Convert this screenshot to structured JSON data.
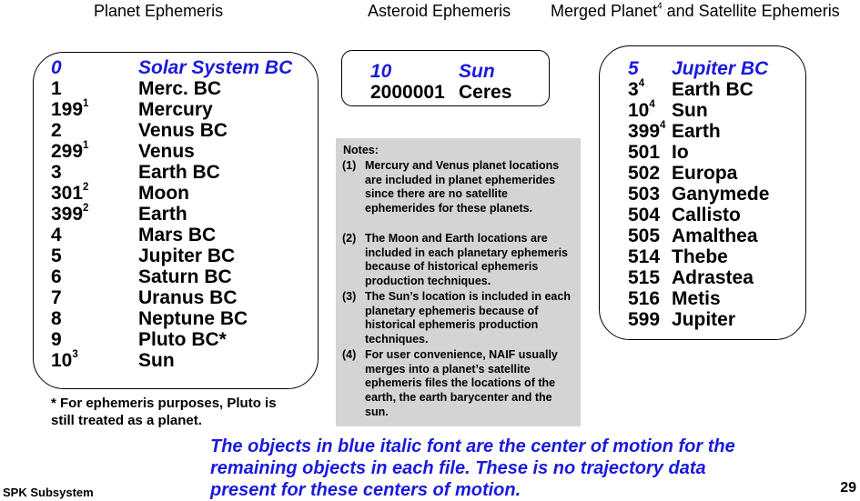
{
  "headers": {
    "planet": "Planet Ephemeris",
    "asteroid": "Asteroid Ephemeris",
    "merged_pre": "Merged Planet",
    "merged_sup": "4",
    "merged_post": " and Satellite Ephemeris"
  },
  "planet_rows": [
    {
      "id": "0",
      "sup": "",
      "name": "Solar System BC",
      "center": true
    },
    {
      "id": "1",
      "sup": "",
      "name": "Merc. BC"
    },
    {
      "id": "199",
      "sup": "1",
      "name": "Mercury"
    },
    {
      "id": "2",
      "sup": "",
      "name": "Venus BC"
    },
    {
      "id": "299",
      "sup": "1",
      "name": "Venus"
    },
    {
      "id": "3",
      "sup": "",
      "name": "Earth BC"
    },
    {
      "id": "301",
      "sup": "2",
      "name": "Moon"
    },
    {
      "id": "399",
      "sup": "2",
      "name": "Earth"
    },
    {
      "id": "4",
      "sup": "",
      "name": "Mars BC"
    },
    {
      "id": "5",
      "sup": "",
      "name": "Jupiter BC"
    },
    {
      "id": "6",
      "sup": "",
      "name": "Saturn BC"
    },
    {
      "id": "7",
      "sup": "",
      "name": "Uranus BC"
    },
    {
      "id": "8",
      "sup": "",
      "name": "Neptune BC"
    },
    {
      "id": "9",
      "sup": "",
      "name": "Pluto BC*"
    },
    {
      "id": "10",
      "sup": "3",
      "name": "Sun"
    }
  ],
  "asteroid_rows": [
    {
      "id": "10",
      "sup": "",
      "name": "Sun",
      "center": true
    },
    {
      "id": "2000001",
      "sup": "",
      "name": "Ceres"
    }
  ],
  "merged_rows": [
    {
      "id": "5",
      "sup": "",
      "name": "Jupiter BC",
      "center": true
    },
    {
      "id": "3",
      "sup": "4",
      "name": "Earth BC"
    },
    {
      "id": "10",
      "sup": "4",
      "name": "Sun"
    },
    {
      "id": "399",
      "sup": "4",
      "name": "Earth"
    },
    {
      "id": "501",
      "sup": "",
      "name": "Io"
    },
    {
      "id": "502",
      "sup": "",
      "name": "Europa"
    },
    {
      "id": "503",
      "sup": "",
      "name": "Ganymede"
    },
    {
      "id": "504",
      "sup": "",
      "name": "Callisto"
    },
    {
      "id": "505",
      "sup": "",
      "name": "Amalthea"
    },
    {
      "id": "514",
      "sup": "",
      "name": "Thebe"
    },
    {
      "id": "515",
      "sup": "",
      "name": "Adrastea"
    },
    {
      "id": "516",
      "sup": "",
      "name": "Metis"
    },
    {
      "id": "599",
      "sup": "",
      "name": "Jupiter"
    }
  ],
  "notes": {
    "title": "Notes:",
    "items": [
      {
        "num": "(1)",
        "text": "Mercury and Venus planet locations are included in planet ephemerides since there are no satellite ephemerides for these planets."
      },
      {
        "num": "(2)",
        "text": "The Moon and Earth locations are included in each planetary ephemeris because of historical ephemeris production techniques."
      },
      {
        "num": "(3)",
        "text": "The Sun’s location is included in each planetary ephemeris because of historical ephemeris production techniques."
      },
      {
        "num": "(4)",
        "text": "For user convenience, NAIF usually merges into a planet’s satellite ephemeris files the locations of the earth, the earth barycenter and the sun."
      }
    ]
  },
  "footnote": "* For ephemeris purposes, Pluto is still treated as a planet.",
  "blue_message": "The objects in blue italic font are the center of motion for the remaining objects in each file. These is no trajectory data present for these centers of motion.",
  "footer": {
    "left": "SPK Subsystem",
    "page": "29"
  },
  "colors": {
    "center_blue": "#1a1adb",
    "notes_bg": "#d4d4d4"
  }
}
